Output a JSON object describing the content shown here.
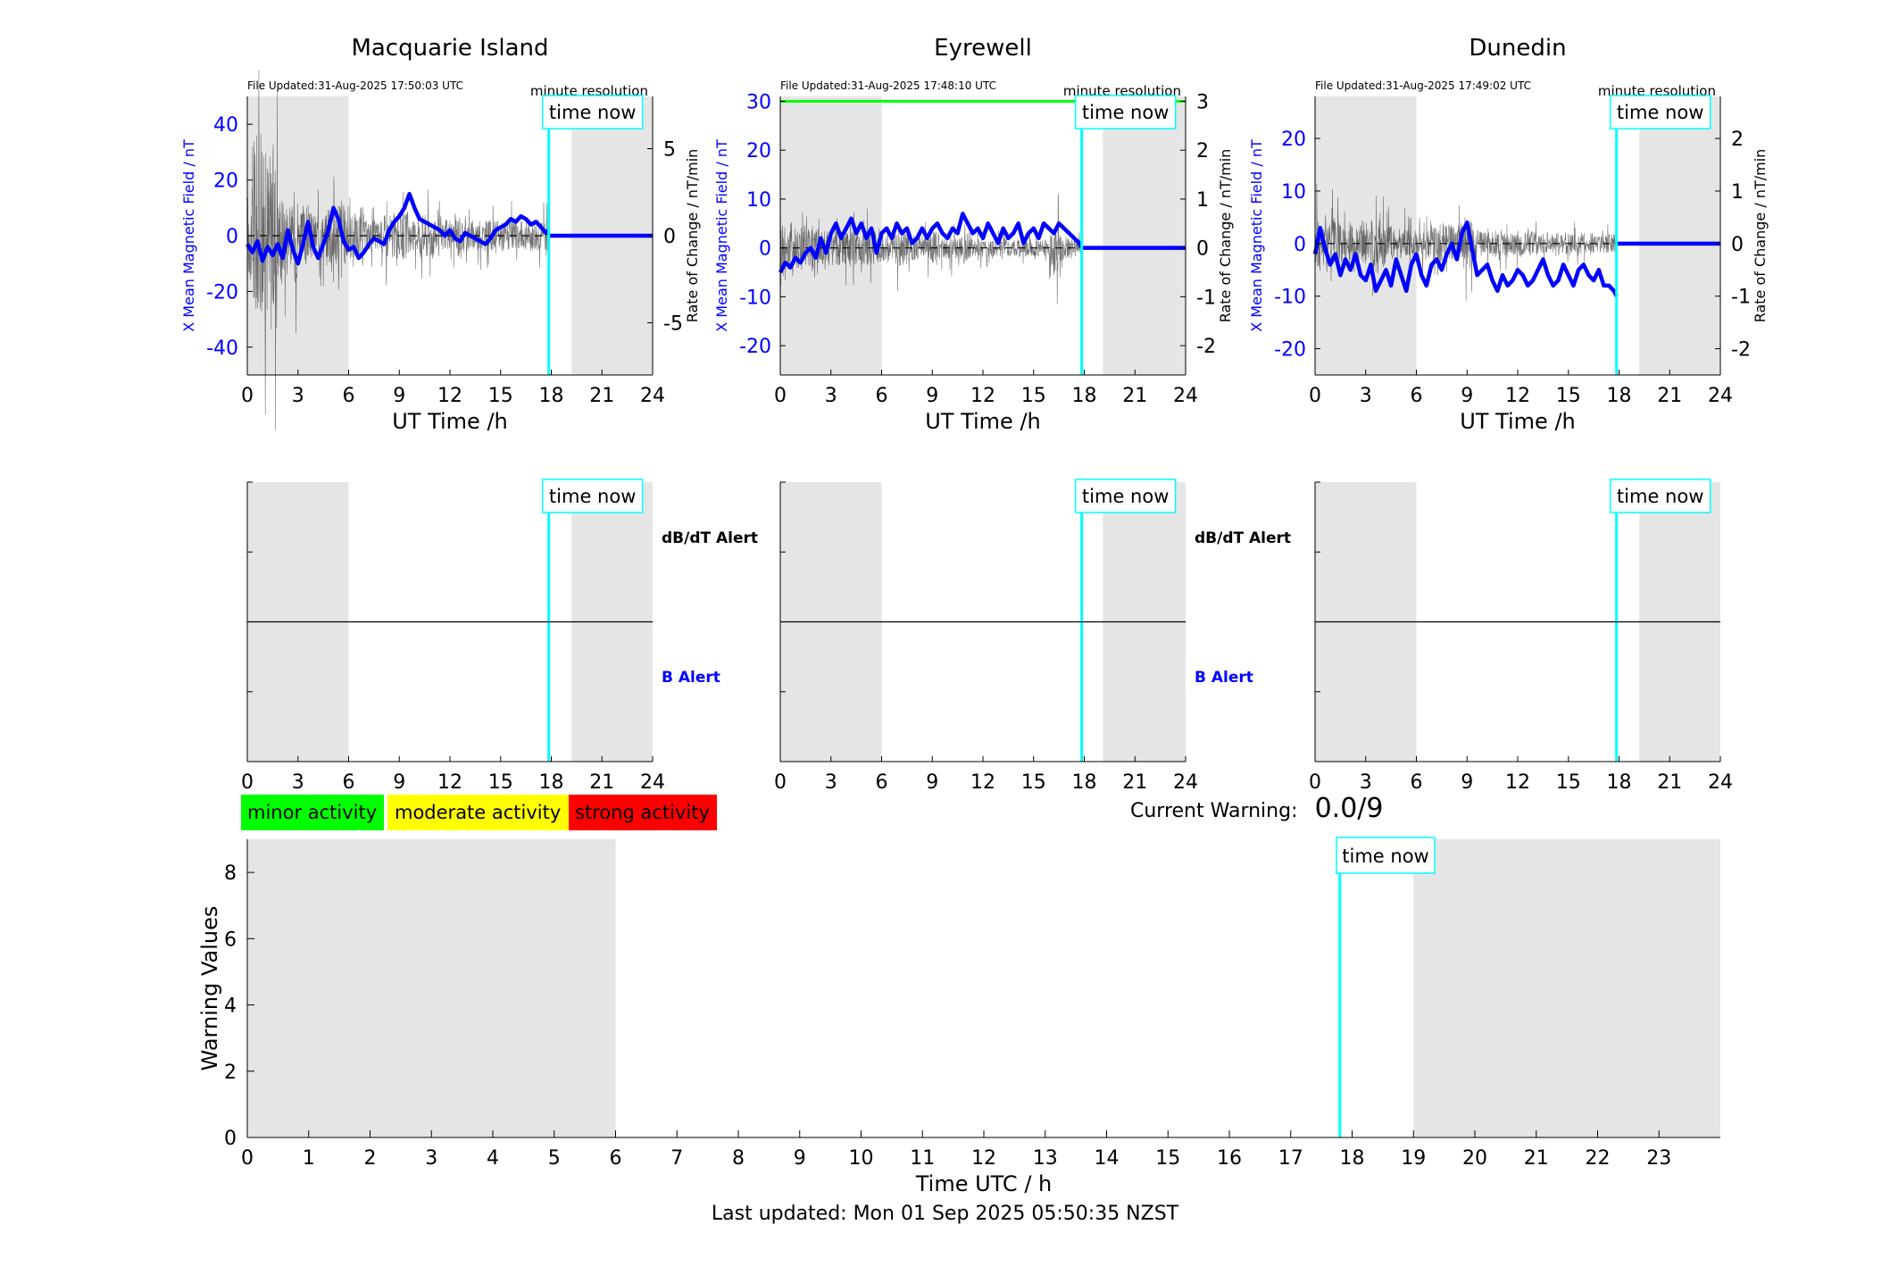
{
  "legend": {
    "minor": {
      "label": "minor activity",
      "color": "#00ff00"
    },
    "moderate": {
      "label": "moderate activity",
      "color": "#ffff00"
    },
    "strong": {
      "label": "strong activity",
      "color": "#ff0000"
    }
  },
  "current_warning": {
    "label": "Current Warning:",
    "value": "0.0/9"
  },
  "footer": "Last updated: Mon 01 Sep 2025 05:50:35 NZST",
  "colors": {
    "shade": "#e5e5e5",
    "x_series": "#0000ff",
    "now_line": "#00ffff",
    "threshold": "#00ff00",
    "rate_series": "#000000"
  },
  "chart_data": [
    {
      "type": "line",
      "title": "Macquarie Island",
      "file_updated": "File Updated:31-Aug-2025 17:50:03 UTC",
      "resolution": "minute resolution",
      "now_label": "time now",
      "xlabel": "UT Time /h",
      "ylabel_left": "X Mean Magnetic Field / nT",
      "ylabel_right": "Rate of Change / nT/min",
      "xlim": [
        0,
        24
      ],
      "xticks": [
        0,
        3,
        6,
        9,
        12,
        15,
        18,
        21,
        24
      ],
      "ylim_left": [
        -50,
        50
      ],
      "yticks_left": [
        -40,
        -20,
        0,
        20,
        40
      ],
      "ylim_right": [
        -8,
        8
      ],
      "yticks_right": [
        -5,
        0,
        5
      ],
      "shaded_x": [
        [
          0,
          6
        ],
        [
          19.2,
          24
        ]
      ],
      "now_x": 17.85,
      "threshold_left": null,
      "x_mean_field": {
        "x": [
          0,
          0.3,
          0.6,
          0.9,
          1.2,
          1.5,
          1.8,
          2.1,
          2.4,
          2.7,
          3.0,
          3.3,
          3.6,
          3.9,
          4.2,
          4.5,
          4.8,
          5.1,
          5.4,
          5.7,
          6.0,
          6.3,
          6.6,
          6.9,
          7.2,
          7.5,
          7.8,
          8.1,
          8.4,
          8.7,
          9.0,
          9.3,
          9.6,
          9.9,
          10.2,
          10.5,
          10.8,
          11.1,
          11.4,
          11.7,
          12.0,
          12.3,
          12.6,
          12.9,
          13.2,
          13.5,
          13.8,
          14.1,
          14.4,
          14.7,
          15.0,
          15.3,
          15.6,
          15.9,
          16.2,
          16.5,
          16.8,
          17.1,
          17.4,
          17.7,
          17.85
        ],
        "y": [
          -3,
          -6,
          -2,
          -9,
          -4,
          -7,
          -3,
          -8,
          2,
          -5,
          -10,
          -3,
          5,
          -4,
          -8,
          -3,
          2,
          10,
          6,
          -2,
          -5,
          -4,
          -8,
          -6,
          -3,
          -1,
          -2,
          -3,
          2,
          5,
          7,
          10,
          15,
          10,
          6,
          5,
          4,
          3,
          2,
          0,
          2,
          -1,
          -2,
          1,
          0,
          -1,
          -2,
          -3,
          -1,
          2,
          3,
          4,
          6,
          5,
          7,
          6,
          4,
          5,
          3,
          1,
          2
        ]
      },
      "x_after_now": {
        "x": [
          17.85,
          24
        ],
        "y": [
          0,
          0
        ]
      },
      "rate_amplitude": [
        6,
        14,
        10,
        11,
        12,
        12,
        6,
        5,
        4,
        6,
        3,
        4,
        3,
        3,
        3,
        3,
        4,
        4,
        6,
        4,
        3,
        3,
        4,
        2,
        2,
        2,
        2,
        3,
        3,
        3,
        3,
        3,
        2,
        2,
        3,
        3,
        3,
        2,
        2,
        2,
        2,
        3,
        2,
        2,
        2,
        2,
        2,
        2,
        2,
        2,
        2,
        2,
        2,
        2,
        2,
        2,
        2,
        2,
        2,
        2,
        2
      ],
      "alert_panel": {
        "upper_label": "dB/dT Alert",
        "lower_label": "B Alert"
      }
    },
    {
      "type": "line",
      "title": "Eyrewell",
      "file_updated": "File Updated:31-Aug-2025 17:48:10 UTC",
      "resolution": "minute resolution",
      "now_label": "time now",
      "xlabel": "UT Time /h",
      "ylabel_left": "X Mean Magnetic Field / nT",
      "ylabel_right": "Rate of Change / nT/min",
      "xlim": [
        0,
        24
      ],
      "xticks": [
        0,
        3,
        6,
        9,
        12,
        15,
        18,
        21,
        24
      ],
      "ylim_left": [
        -26,
        31
      ],
      "yticks_left": [
        -20,
        -10,
        0,
        10,
        20,
        30
      ],
      "ylim_right": [
        -2.6,
        3.1
      ],
      "yticks_right": [
        -2,
        -1,
        0,
        1,
        2,
        3
      ],
      "shaded_x": [
        [
          0,
          6
        ],
        [
          19.1,
          24
        ]
      ],
      "now_x": 17.85,
      "threshold_left": 30,
      "x_mean_field": {
        "x": [
          0,
          0.3,
          0.6,
          0.9,
          1.2,
          1.5,
          1.8,
          2.1,
          2.4,
          2.7,
          3.0,
          3.3,
          3.6,
          3.9,
          4.2,
          4.5,
          4.8,
          5.1,
          5.4,
          5.7,
          6.0,
          6.3,
          6.6,
          6.9,
          7.2,
          7.5,
          7.8,
          8.1,
          8.4,
          8.7,
          9.0,
          9.3,
          9.6,
          9.9,
          10.2,
          10.5,
          10.8,
          11.1,
          11.4,
          11.7,
          12.0,
          12.3,
          12.6,
          12.9,
          13.2,
          13.5,
          13.8,
          14.1,
          14.4,
          14.7,
          15.0,
          15.3,
          15.6,
          15.9,
          16.2,
          16.5,
          16.8,
          17.1,
          17.4,
          17.7,
          17.85
        ],
        "y": [
          -5,
          -3,
          -4,
          -2,
          -3,
          -1,
          0,
          -2,
          2,
          -1,
          3,
          5,
          2,
          4,
          6,
          3,
          5,
          2,
          4,
          -1,
          3,
          4,
          2,
          5,
          3,
          4,
          1,
          2,
          4,
          2,
          4,
          5,
          3,
          2,
          4,
          3,
          7,
          5,
          3,
          4,
          2,
          5,
          3,
          1,
          4,
          2,
          3,
          5,
          1,
          3,
          4,
          2,
          5,
          4,
          3,
          5,
          4,
          3,
          2,
          1,
          0
        ]
      },
      "x_after_now": {
        "x": [
          17.85,
          24
        ],
        "y": [
          0,
          0
        ]
      },
      "rate_amplitude": [
        1.5,
        1.2,
        1.3,
        1.0,
        1.1,
        1.0,
        1.2,
        0.9,
        1.0,
        0.8,
        0.9,
        0.8,
        0.8,
        0.7,
        0.8,
        0.9,
        0.8,
        0.9,
        0.8,
        0.7,
        0.6,
        0.7,
        0.8,
        0.9,
        0.8,
        0.7,
        0.6,
        0.5,
        0.6,
        0.7,
        0.8,
        0.6,
        0.5,
        0.6,
        0.5,
        0.5,
        0.6,
        0.5,
        0.4,
        0.5,
        0.4,
        0.5,
        0.4,
        0.4,
        0.5,
        0.4,
        0.4,
        0.4,
        0.4,
        0.4,
        0.4,
        0.4,
        0.4,
        0.8,
        1.2,
        0.6,
        0.5,
        0.4,
        0.4,
        0.4,
        0.4
      ],
      "alert_panel": {
        "upper_label": "dB/dT Alert",
        "lower_label": "B Alert"
      }
    },
    {
      "type": "line",
      "title": "Dunedin",
      "file_updated": "File Updated:31-Aug-2025 17:49:02 UTC",
      "resolution": "minute resolution",
      "now_label": "time now",
      "xlabel": "UT Time /h",
      "ylabel_left": "X Mean Magnetic Field / nT",
      "ylabel_right": "Rate of Change / nT/min",
      "xlim": [
        0,
        24
      ],
      "xticks": [
        0,
        3,
        6,
        9,
        12,
        15,
        18,
        21,
        24
      ],
      "ylim_left": [
        -25,
        28
      ],
      "yticks_left": [
        -20,
        -10,
        0,
        10,
        20
      ],
      "ylim_right": [
        -2.5,
        2.8
      ],
      "yticks_right": [
        -2,
        -1,
        0,
        1,
        2
      ],
      "shaded_x": [
        [
          0,
          6
        ],
        [
          19.2,
          24
        ]
      ],
      "now_x": 17.85,
      "threshold_left": null,
      "x_mean_field": {
        "x": [
          0,
          0.3,
          0.6,
          0.9,
          1.2,
          1.5,
          1.8,
          2.1,
          2.4,
          2.7,
          3.0,
          3.3,
          3.6,
          3.9,
          4.2,
          4.5,
          4.8,
          5.1,
          5.4,
          5.7,
          6.0,
          6.3,
          6.6,
          6.9,
          7.2,
          7.5,
          7.8,
          8.1,
          8.4,
          8.7,
          9.0,
          9.3,
          9.6,
          9.9,
          10.2,
          10.5,
          10.8,
          11.1,
          11.4,
          11.7,
          12.0,
          12.3,
          12.6,
          12.9,
          13.2,
          13.5,
          13.8,
          14.1,
          14.4,
          14.7,
          15.0,
          15.3,
          15.6,
          15.9,
          16.2,
          16.5,
          16.8,
          17.1,
          17.4,
          17.7,
          17.85
        ],
        "y": [
          -2,
          3,
          -1,
          -4,
          -2,
          -6,
          -3,
          -5,
          -2,
          -6,
          -7,
          -4,
          -9,
          -7,
          -5,
          -8,
          -3,
          -6,
          -9,
          -4,
          -2,
          -6,
          -8,
          -4,
          -3,
          -5,
          -2,
          0,
          -3,
          2,
          4,
          -1,
          -6,
          -5,
          -4,
          -7,
          -9,
          -6,
          -8,
          -7,
          -5,
          -6,
          -8,
          -7,
          -5,
          -3,
          -6,
          -8,
          -7,
          -4,
          -6,
          -8,
          -5,
          -4,
          -6,
          -7,
          -5,
          -8,
          -8,
          -9,
          -10
        ]
      },
      "x_after_now": {
        "x": [
          17.85,
          24
        ],
        "y": [
          0,
          0
        ]
      },
      "rate_amplitude": [
        1.2,
        1.0,
        0.9,
        1.1,
        0.9,
        0.8,
        0.7,
        0.8,
        0.7,
        1.0,
        0.9,
        1.2,
        1.3,
        1.0,
        0.9,
        0.8,
        0.7,
        0.7,
        0.6,
        0.6,
        0.6,
        0.7,
        0.6,
        0.8,
        1.0,
        0.9,
        0.8,
        0.8,
        0.9,
        1.1,
        1.0,
        0.7,
        0.6,
        0.6,
        0.5,
        0.6,
        0.7,
        0.6,
        0.5,
        0.5,
        0.6,
        0.5,
        0.6,
        0.5,
        0.4,
        0.5,
        0.4,
        0.5,
        0.4,
        0.5,
        0.4,
        0.5,
        0.5,
        0.4,
        0.5,
        0.4,
        0.4,
        0.4,
        0.4,
        0.4,
        0.4
      ],
      "alert_panel": {
        "upper_label": "",
        "lower_label": ""
      }
    },
    {
      "type": "bar",
      "title": "",
      "xlabel": "Time UTC / h",
      "ylabel": "Warning Values",
      "xlim": [
        0,
        24
      ],
      "xticks": [
        0,
        1,
        2,
        3,
        4,
        5,
        6,
        7,
        8,
        9,
        10,
        11,
        12,
        13,
        14,
        15,
        16,
        17,
        18,
        19,
        20,
        21,
        22,
        23
      ],
      "ylim": [
        0,
        9
      ],
      "yticks": [
        0,
        2,
        4,
        6,
        8
      ],
      "shaded_x": [
        [
          0,
          6
        ],
        [
          19,
          24
        ]
      ],
      "now_x": 17.8,
      "now_label": "time now",
      "values": []
    }
  ]
}
